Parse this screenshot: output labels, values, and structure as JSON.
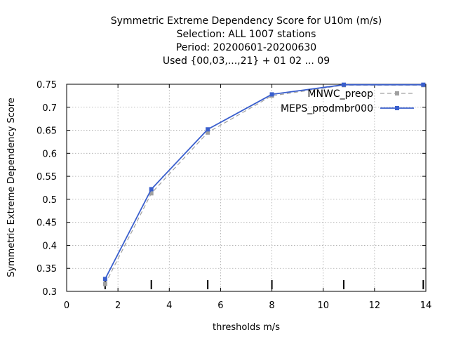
{
  "chart_data": {
    "type": "line",
    "title_lines": [
      "Symmetric Extreme Dependency Score  for U10m (m/s)",
      "Selection: ALL    1007 stations",
      "Period: 20200601-20200630",
      "Used {00,03,...,21} + 01 02 ... 09"
    ],
    "xlabel": "thresholds m/s",
    "ylabel": "Symmetric Extreme Dependency Score",
    "xlim": [
      0,
      14
    ],
    "ylim": [
      0.3,
      0.75
    ],
    "xticks": [
      0,
      2,
      4,
      6,
      8,
      10,
      12,
      14
    ],
    "yticks": [
      0.3,
      0.35,
      0.4,
      0.45,
      0.5,
      0.55,
      0.6,
      0.65,
      0.7,
      0.75
    ],
    "xtick_labels": [
      "0",
      "2",
      "4",
      "6",
      "8",
      "10",
      "12",
      "14"
    ],
    "ytick_labels": [
      "0.3",
      "0.35",
      "0.4",
      "0.45",
      "0.5",
      "0.55",
      "0.6",
      "0.65",
      "0.7",
      "0.75"
    ],
    "grid": true,
    "legend_position": "top-right",
    "threshold_marks": [
      1.5,
      3.3,
      5.5,
      8,
      10.8,
      13.9
    ],
    "series": [
      {
        "name": "MNWC_preop",
        "color": "#a0a0a0",
        "dashed": true,
        "x": [
          1.5,
          3.3,
          5.5,
          8,
          10.8,
          13.9
        ],
        "y": [
          0.316,
          0.513,
          0.645,
          0.725,
          0.748,
          0.748
        ]
      },
      {
        "name": "MEPS_prodmbr000",
        "color": "#3a5fcd",
        "dashed": false,
        "x": [
          1.5,
          3.3,
          5.5,
          8,
          10.8,
          13.9
        ],
        "y": [
          0.327,
          0.522,
          0.652,
          0.728,
          0.749,
          0.749
        ]
      }
    ]
  }
}
